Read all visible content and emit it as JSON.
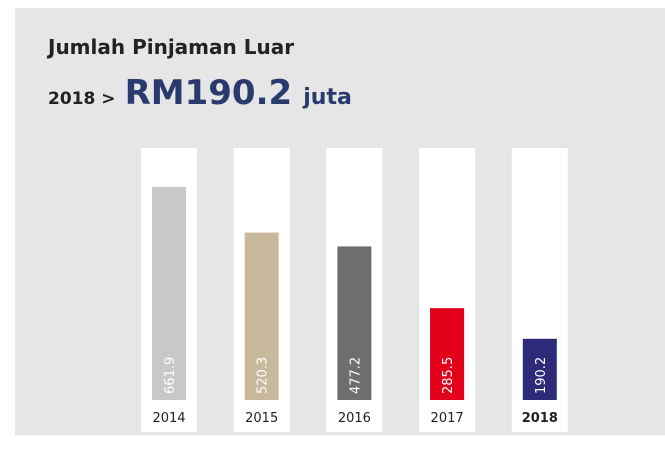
{
  "chart_data": {
    "type": "bar",
    "title": "Jumlah Pinjaman Luar",
    "subtitle": {
      "prefix": "2018 >",
      "value": "RM190.2",
      "unit": "juta"
    },
    "categories": [
      "2014",
      "2015",
      "2016",
      "2017",
      "2018"
    ],
    "values": [
      661.9,
      520.3,
      477.2,
      285.5,
      190.2
    ],
    "colors": [
      "#c8c8c8",
      "#c8b99c",
      "#6e6e6e",
      "#e2001a",
      "#2e2a7a"
    ]
  }
}
